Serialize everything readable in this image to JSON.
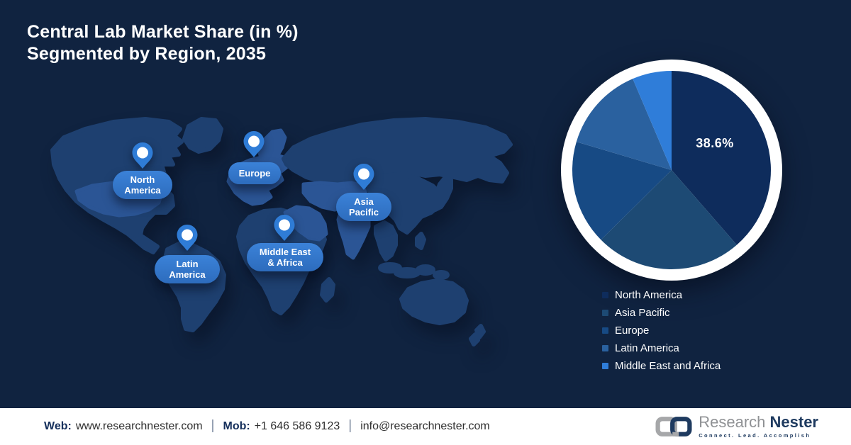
{
  "title": {
    "line1": "Central Lab Market Share (in %)",
    "line2": "Segmented by Region, 2035"
  },
  "map": {
    "pins": [
      {
        "id": "north-america",
        "line1": "North",
        "line2": "America"
      },
      {
        "id": "europe",
        "line1": "Europe",
        "line2": ""
      },
      {
        "id": "asia-pacific",
        "line1": "Asia",
        "line2": "Pacific"
      },
      {
        "id": "middle-east-africa",
        "line1": "Middle East",
        "line2": "& Africa"
      },
      {
        "id": "latin-america",
        "line1": "Latin",
        "line2": "America"
      }
    ]
  },
  "chart_data": {
    "type": "pie",
    "title": "Central Lab Market Share (in %) Segmented by Region, 2035",
    "categories": [
      "North America",
      "Asia Pacific",
      "Europe",
      "Latin America",
      "Middle East and Africa"
    ],
    "values": [
      38.6,
      24,
      17,
      14,
      6.4
    ],
    "colors": [
      "#0e2c5c",
      "#1d4a74",
      "#174a84",
      "#2a619f",
      "#2f7dd9"
    ],
    "start_angle_deg": 0,
    "direction": "clockwise",
    "labeled_slice": {
      "index": 0,
      "text": "38.6%"
    },
    "legend_position": "below-right"
  },
  "footer": {
    "web_label": "Web:",
    "web_value": "www.researchnester.com",
    "mob_label": "Mob:",
    "mob_value": "+1 646 586 9123",
    "email_value": "info@researchnester.com",
    "separator": "|"
  },
  "logo": {
    "word1": "Research",
    "word2": "Nester",
    "tagline": "Connect. Lead. Accomplish"
  },
  "colors": {
    "background": "#102340",
    "map_base": "#1e4070",
    "map_highlight": "#2b5595",
    "pin_blue": "#2f7cd6",
    "pill_blue": "#2e72c6",
    "footer_bg": "#ffffff",
    "title_text": "#ffffff"
  }
}
